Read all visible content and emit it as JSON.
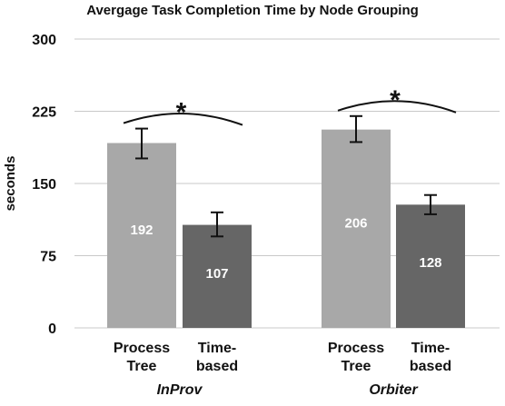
{
  "chart_data": {
    "type": "bar",
    "title": "Avergage Task Completion Time by Node Grouping",
    "ylabel": "seconds",
    "ylim": [
      0,
      300
    ],
    "yticks": [
      0,
      75,
      150,
      225,
      300
    ],
    "grid": true,
    "groups": [
      {
        "name": "InProv",
        "significance": "*",
        "bars": [
          {
            "category": [
              "Process",
              "Tree"
            ],
            "value": 192,
            "error_low": 176,
            "error_high": 207,
            "color": "#a8a8a8"
          },
          {
            "category": [
              "Time-",
              "based"
            ],
            "value": 107,
            "error_low": 95,
            "error_high": 120,
            "color": "#666666"
          }
        ]
      },
      {
        "name": "Orbiter",
        "significance": "*",
        "bars": [
          {
            "category": [
              "Process",
              "Tree"
            ],
            "value": 206,
            "error_low": 193,
            "error_high": 220,
            "color": "#a8a8a8"
          },
          {
            "category": [
              "Time-",
              "based"
            ],
            "value": 128,
            "error_low": 118,
            "error_high": 138,
            "color": "#666666"
          }
        ]
      }
    ]
  }
}
